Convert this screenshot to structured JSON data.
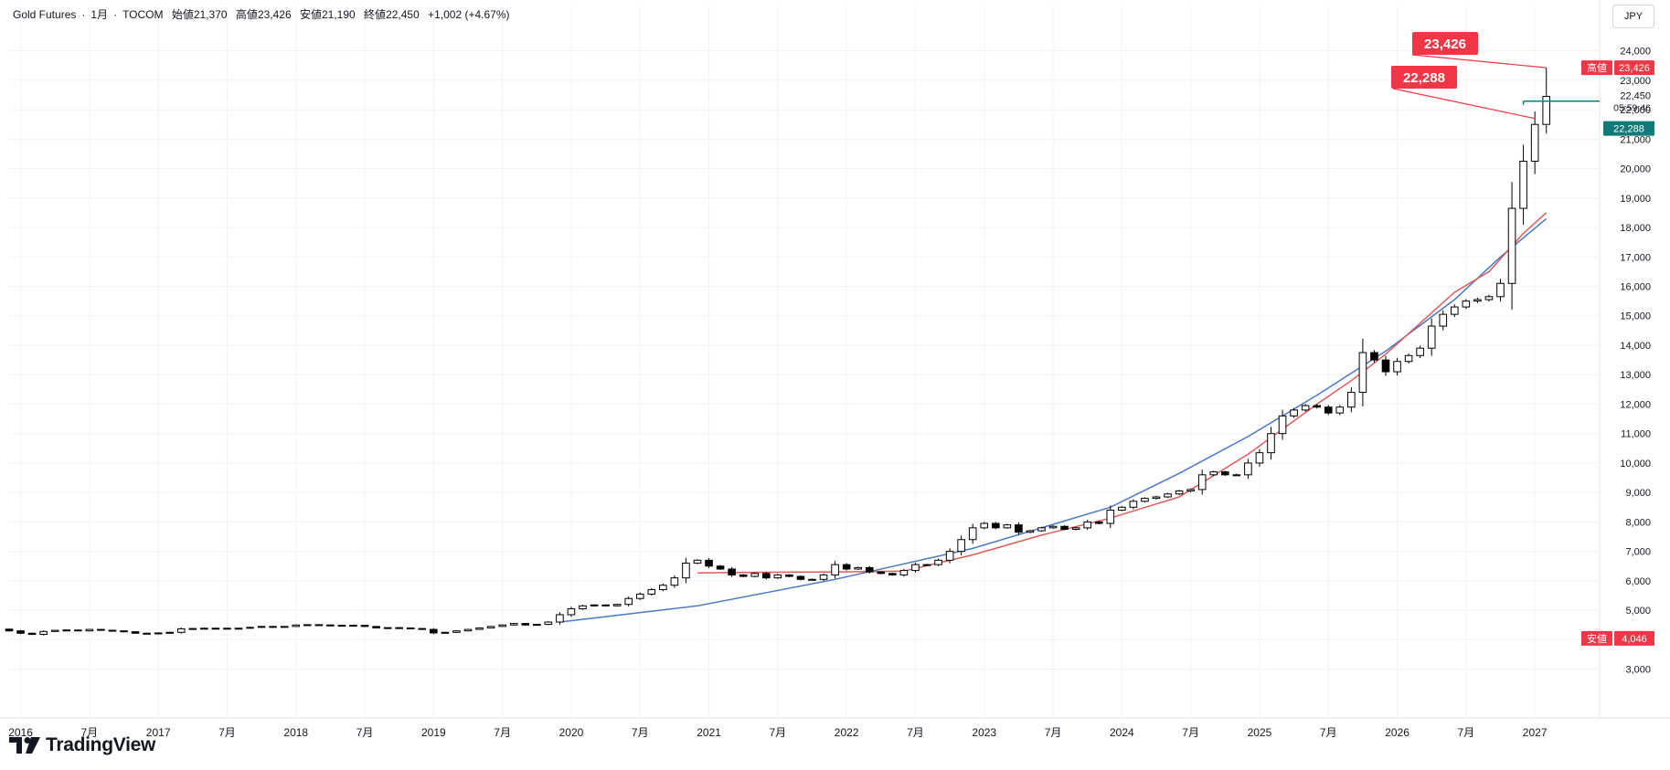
{
  "header": {
    "symbol": "Gold Futures",
    "interval": "1月",
    "exchange": "TOCOM",
    "open_label": "始値",
    "open": "21,370",
    "high_label": "高値",
    "high": "23,426",
    "low_label": "安値",
    "low": "21,190",
    "close_label": "終値",
    "close": "22,450",
    "change": "+1,002 (+4.67%)",
    "separator": "·"
  },
  "currency": "JPY",
  "brand": "TradingView",
  "colors": {
    "up": "#ffffff",
    "down": "#000000",
    "ma_short": "#e05a5a",
    "ma_long": "#4a78c9",
    "price_line": "#0f7a78",
    "high_tag": "#f23645",
    "low_tag": "#f23645",
    "grid": "#f0f3fa"
  },
  "price_scale": {
    "high_label": "高値",
    "high_value": "23,426",
    "low_label": "安値",
    "low_value": "4,046",
    "last_price": "22,450",
    "countdown": "05:59:46",
    "current_tag": "22,288"
  },
  "annotations": {
    "high_callout": "23,426",
    "current_callout": "22,288"
  },
  "chart_data": {
    "type": "candlestick",
    "title": "Gold Futures · 1月 · TOCOM",
    "ylim": [
      2200,
      24900
    ],
    "y_ticks": [
      3000,
      4000,
      5000,
      6000,
      7000,
      8000,
      9000,
      10000,
      11000,
      12000,
      13000,
      14000,
      15000,
      16000,
      17000,
      18000,
      19000,
      20000,
      21000,
      22000,
      23000,
      24000
    ],
    "y_tick_labels": [
      "3,000",
      "4,000",
      "5,000",
      "6,000",
      "7,000",
      "8,000",
      "9,000",
      "10,000",
      "11,000",
      "12,000",
      "13,000",
      "14,000",
      "15,000",
      "16,000",
      "17,000",
      "18,000",
      "19,000",
      "20,000",
      "21,000",
      "22,000",
      "23,000",
      "24,000"
    ],
    "x_start": "2015-12",
    "x_labels": [
      {
        "label": "2016",
        "month": 1
      },
      {
        "label": "7月",
        "month": 7
      },
      {
        "label": "2017",
        "month": 13
      },
      {
        "label": "7月",
        "month": 19
      },
      {
        "label": "2018",
        "month": 25
      },
      {
        "label": "7月",
        "month": 31
      },
      {
        "label": "2019",
        "month": 37
      },
      {
        "label": "7月",
        "month": 43
      },
      {
        "label": "2020",
        "month": 49
      },
      {
        "label": "7月",
        "month": 55
      },
      {
        "label": "2021",
        "month": 61
      },
      {
        "label": "7月",
        "month": 67
      },
      {
        "label": "2022",
        "month": 73
      },
      {
        "label": "7月",
        "month": 79
      },
      {
        "label": "2023",
        "month": 85
      },
      {
        "label": "7月",
        "month": 91
      },
      {
        "label": "2024",
        "month": 97
      },
      {
        "label": "7月",
        "month": 103
      },
      {
        "label": "2025",
        "month": 109
      },
      {
        "label": "7月",
        "month": 115
      },
      {
        "label": "2026",
        "month": 121
      },
      {
        "label": "7月",
        "month": 127
      },
      {
        "label": "2027",
        "month": 133
      }
    ],
    "closes": [
      4300,
      4220,
      4180,
      4280,
      4320,
      4330,
      4300,
      4350,
      4320,
      4300,
      4270,
      4220,
      4210,
      4230,
      4250,
      4370,
      4380,
      4390,
      4390,
      4380,
      4390,
      4420,
      4450,
      4420,
      4450,
      4500,
      4510,
      4500,
      4480,
      4490,
      4490,
      4450,
      4400,
      4410,
      4400,
      4380,
      4350,
      4230,
      4250,
      4300,
      4350,
      4400,
      4450,
      4500,
      4550,
      4500,
      4520,
      4600,
      4850,
      5050,
      5150,
      5180,
      5150,
      5200,
      5400,
      5550,
      5700,
      5850,
      6100,
      6600,
      6700,
      6500,
      6400,
      6200,
      6150,
      6250,
      6100,
      6200,
      6150,
      6050,
      6050,
      6200,
      6550,
      6400,
      6450,
      6300,
      6250,
      6200,
      6350,
      6550,
      6550,
      6700,
      7000,
      7400,
      7800,
      7950,
      7800,
      7900,
      7650,
      7700,
      7800,
      7850,
      7750,
      7800,
      8000,
      7950,
      8400,
      8500,
      8700,
      8800,
      8850,
      8950,
      9050,
      9100,
      9600,
      9700,
      9600,
      9600,
      10000,
      10350,
      11000,
      11600,
      11800,
      11950,
      11900,
      11700,
      11900,
      12400,
      13750,
      13500,
      13100,
      13450,
      13650,
      13900,
      14650,
      15050,
      15300,
      15500,
      15550,
      15650,
      16100,
      18650,
      20250,
      21500,
      22450
    ],
    "ma_short": {
      "name": "short MA",
      "values": [
        [
          60,
          6270
        ],
        [
          66,
          6290
        ],
        [
          72,
          6300
        ],
        [
          78,
          6330
        ],
        [
          84,
          6880
        ],
        [
          90,
          7550
        ],
        [
          96,
          8130
        ],
        [
          102,
          8850
        ],
        [
          108,
          10300
        ],
        [
          114,
          12000
        ],
        [
          117,
          12800
        ],
        [
          120,
          13700
        ],
        [
          126,
          15800
        ],
        [
          129,
          16500
        ],
        [
          132,
          17800
        ],
        [
          134,
          18500
        ]
      ]
    },
    "ma_long": {
      "name": "long MA",
      "values": [
        [
          48,
          4600
        ],
        [
          60,
          5150
        ],
        [
          72,
          6050
        ],
        [
          84,
          7100
        ],
        [
          96,
          8500
        ],
        [
          102,
          9650
        ],
        [
          108,
          10900
        ],
        [
          114,
          12300
        ],
        [
          120,
          13800
        ],
        [
          126,
          15550
        ],
        [
          130,
          17000
        ],
        [
          134,
          18300
        ]
      ]
    },
    "high": 23426,
    "low": 4046,
    "last": 22450,
    "current": 22288
  }
}
